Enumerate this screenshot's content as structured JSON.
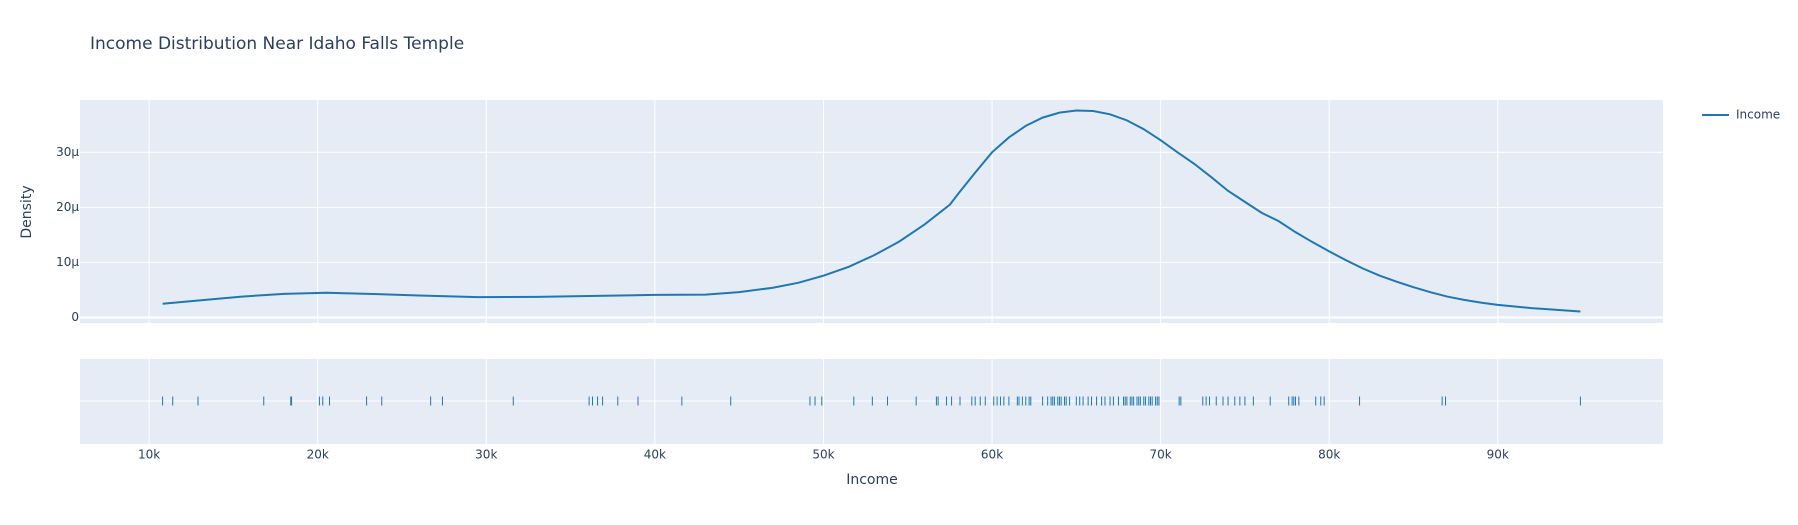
{
  "chart_data": {
    "type": "density",
    "title": "Income Distribution Near Idaho Falls Temple",
    "x_label": "Income",
    "y_label": "Density",
    "xlim": [
      5900,
      99800
    ],
    "xticks": [
      {
        "value": 10000,
        "label": "10k"
      },
      {
        "value": 20000,
        "label": "20k"
      },
      {
        "value": 30000,
        "label": "30k"
      },
      {
        "value": 40000,
        "label": "40k"
      },
      {
        "value": 50000,
        "label": "50k"
      },
      {
        "value": 60000,
        "label": "60k"
      },
      {
        "value": 70000,
        "label": "70k"
      },
      {
        "value": 80000,
        "label": "80k"
      },
      {
        "value": 90000,
        "label": "90k"
      }
    ],
    "ylim": [
      -1e-06,
      3.95e-05
    ],
    "yticks": [
      0,
      {
        "value": 1e-05,
        "label": "10μ"
      },
      {
        "value": 2e-05,
        "label": "20μ"
      },
      {
        "value": 3e-05,
        "label": "30μ"
      }
    ],
    "grid": true,
    "legend": "top-right",
    "series": [
      {
        "name": "Income",
        "color": "#1f77b4",
        "x": [
          10800,
          13000,
          15500,
          18000,
          20500,
          23000,
          26000,
          29500,
          33000,
          37000,
          40000,
          43000,
          45000,
          47000,
          48500,
          50000,
          51500,
          53000,
          54500,
          56000,
          57500,
          58000,
          59000,
          60000,
          61000,
          62000,
          63000,
          64000,
          65000,
          66000,
          67000,
          68000,
          69000,
          70000,
          71000,
          72000,
          73000,
          74000,
          75000,
          76000,
          77000,
          78000,
          79000,
          80000,
          81000,
          82000,
          83000,
          84000,
          85000,
          86000,
          87000,
          88000,
          89000,
          90000,
          91000,
          92000,
          93000,
          94900
        ],
        "values": [
          2.5e-06,
          3.1e-06,
          3.8e-06,
          4.3e-06,
          4.5e-06,
          4.3e-06,
          4e-06,
          3.7e-06,
          3.75e-06,
          3.95e-06,
          4.1e-06,
          4.15e-06,
          4.6e-06,
          5.4e-06,
          6.3e-06,
          7.6e-06,
          9.2e-06,
          1.13e-05,
          1.38e-05,
          1.69e-05,
          2.05e-05,
          2.25e-05,
          2.63e-05,
          3e-05,
          3.27e-05,
          3.48e-05,
          3.63e-05,
          3.72e-05,
          3.76e-05,
          3.75e-05,
          3.69e-05,
          3.58e-05,
          3.42e-05,
          3.22e-05,
          3e-05,
          2.79e-05,
          2.55e-05,
          2.3e-05,
          2.1e-05,
          1.9e-05,
          1.75e-05,
          1.55e-05,
          1.37e-05,
          1.2e-05,
          1.04e-05,
          8.9e-06,
          7.6e-06,
          6.5e-06,
          5.5e-06,
          4.6e-06,
          3.8e-06,
          3.2e-06,
          2.7e-06,
          2.3e-06,
          2e-06,
          1.7e-06,
          1.5e-06,
          1.1e-06
        ],
        "rug": [
          10800,
          11400,
          12900,
          16800,
          18400,
          18450,
          20100,
          20300,
          20700,
          22900,
          23800,
          26700,
          27400,
          31600,
          36100,
          36300,
          36600,
          36900,
          37800,
          39000,
          41600,
          44500,
          49200,
          49500,
          49900,
          51800,
          52900,
          53800,
          55500,
          56700,
          56800,
          57300,
          57600,
          58100,
          58800,
          59000,
          59300,
          59600,
          60100,
          60300,
          60500,
          60700,
          61000,
          61500,
          61600,
          61800,
          62000,
          62200,
          62300,
          63000,
          63300,
          63500,
          63600,
          63700,
          63900,
          64000,
          64100,
          64300,
          64400,
          64600,
          65000,
          65200,
          65400,
          65700,
          65900,
          66200,
          66500,
          66700,
          67000,
          67200,
          67500,
          67800,
          67900,
          68000,
          68200,
          68300,
          68400,
          68600,
          68700,
          68800,
          69000,
          69100,
          69300,
          69400,
          69500,
          69700,
          69800,
          69900,
          71100,
          71200,
          72500,
          72700,
          72900,
          73300,
          73700,
          74000,
          74400,
          74700,
          75000,
          75500,
          76500,
          77600,
          77800,
          77900,
          78000,
          78200,
          79200,
          79500,
          79700,
          81800,
          86700,
          86900,
          94900
        ]
      }
    ]
  }
}
